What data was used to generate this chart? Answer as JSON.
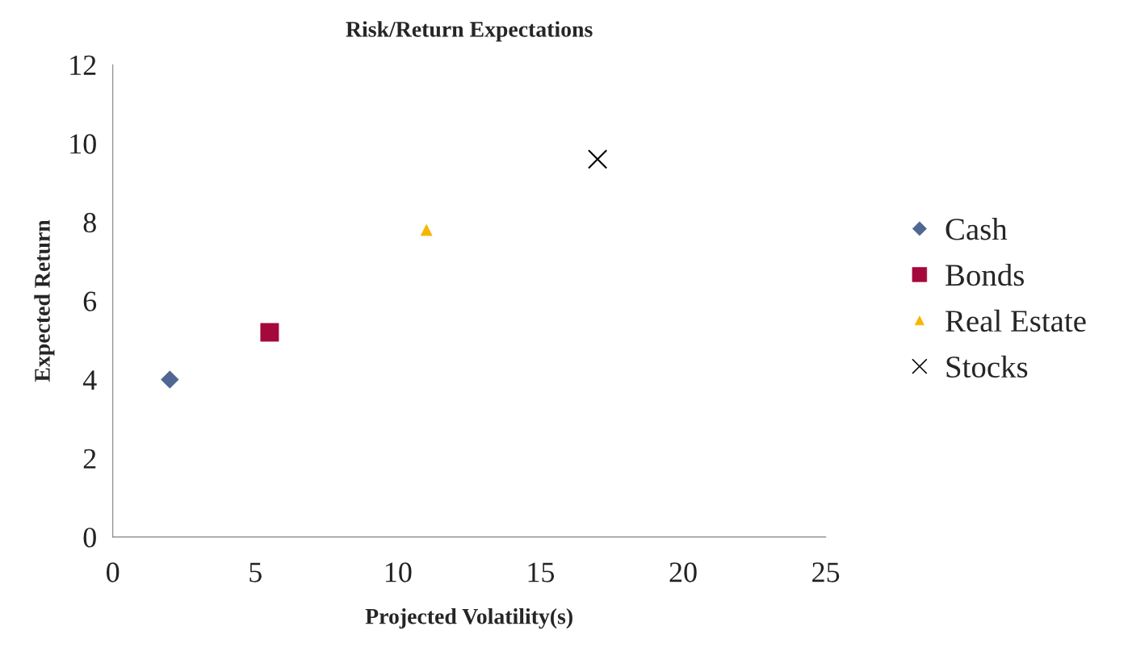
{
  "chart_data": {
    "type": "scatter",
    "title": "Risk/Return Expectations",
    "xlabel": "Projected Volatility(s)",
    "ylabel": "Expected Return",
    "series": [
      {
        "name": "Cash",
        "color": "#4f6791",
        "marker": "diamond",
        "x": [
          2
        ],
        "values": [
          4
        ]
      },
      {
        "name": "Bonds",
        "color": "#a5093b",
        "marker": "square",
        "x": [
          5.5
        ],
        "values": [
          5.2
        ]
      },
      {
        "name": "Real Estate",
        "color": "#f7b500",
        "marker": "triangle",
        "x": [
          11
        ],
        "values": [
          7.8
        ]
      },
      {
        "name": "Stocks",
        "color": "#000000",
        "marker": "cross",
        "x": [
          17
        ],
        "values": [
          9.6
        ]
      }
    ],
    "xlim": [
      0,
      25
    ],
    "xticks": [
      0,
      5,
      10,
      15,
      20,
      25
    ],
    "ylim": [
      0,
      12
    ],
    "yticks": [
      0,
      2,
      4,
      6,
      8,
      10,
      12
    ],
    "grid": false,
    "legend": "right"
  }
}
